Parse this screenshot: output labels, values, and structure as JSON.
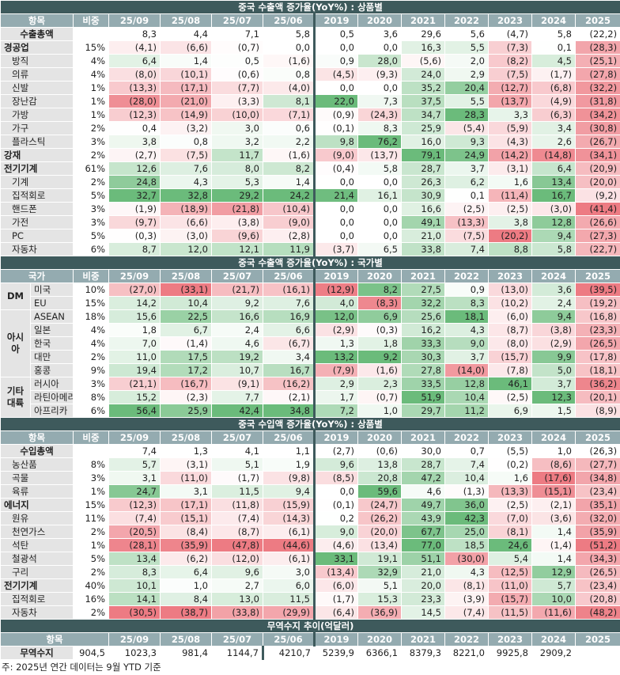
{
  "sections": [
    {
      "title": "중국 수출액 증가율(YoY%) : 상품별",
      "heatmap": true,
      "header": [
        "항목",
        "비중",
        "25/09",
        "25/08",
        "25/07",
        "25/06",
        "2019",
        "2020",
        "2021",
        "2022",
        "2023",
        "2024",
        "2025"
      ],
      "rows": [
        {
          "label": "수출총액",
          "total": true,
          "values": [
            "8,3",
            "4,4",
            "7,1",
            "5,8",
            "0,5",
            "3,6",
            "29,6",
            "5,6",
            "(4,7)",
            "5,8",
            "(22,2)"
          ]
        },
        {
          "label": "경공업",
          "bold": true,
          "weight": "15%",
          "values": [
            "(4,1)",
            "(6,6)",
            "(0,7)",
            "0,0",
            "0,0",
            "0,0",
            "16,3",
            "5,5",
            "(7,3)",
            "0,1",
            "(28,3)"
          ]
        },
        {
          "label": "방직",
          "weight": "4%",
          "values": [
            "6,4",
            "1,4",
            "0,5",
            "(1,6)",
            "0,9",
            "28,0",
            "(5,6)",
            "2,0",
            "(8,2)",
            "4,5",
            "(25,1)"
          ]
        },
        {
          "label": "의류",
          "weight": "4%",
          "values": [
            "(8,0)",
            "(10,1)",
            "(0,6)",
            "0,8",
            "(4,5)",
            "(9,3)",
            "24,0",
            "2,9",
            "(7,5)",
            "(1,7)",
            "(27,8)"
          ]
        },
        {
          "label": "신발",
          "weight": "1%",
          "values": [
            "(13,3)",
            "(17,1)",
            "(7,7)",
            "(4,0)",
            "0,0",
            "0,0",
            "35,2",
            "20,4",
            "(12,7)",
            "(6,8)",
            "(32,2)"
          ]
        },
        {
          "label": "장난감",
          "weight": "1%",
          "values": [
            "(28,0)",
            "(21,0)",
            "(3,3)",
            "8,1",
            "22,0",
            "7,3",
            "37,5",
            "5,5",
            "(13,7)",
            "(4,9)",
            "(31,8)"
          ]
        },
        {
          "label": "가방",
          "weight": "1%",
          "values": [
            "(12,3)",
            "(14,9)",
            "(10,0)",
            "(7,1)",
            "(0,9)",
            "(24,3)",
            "34,7",
            "28,3",
            "3,3",
            "(6,3)",
            "(34,2)"
          ]
        },
        {
          "label": "가구",
          "weight": "2%",
          "values": [
            "0,4",
            "(3,2)",
            "3,0",
            "0,6",
            "(0,1)",
            "8,3",
            "25,9",
            "(5,4)",
            "(5,9)",
            "3,4",
            "(30,8)"
          ]
        },
        {
          "label": "플라스틱",
          "weight": "3%",
          "values": [
            "3,8",
            "0,8",
            "3,2",
            "2,2",
            "9,8",
            "76,2",
            "16,0",
            "9,3",
            "(4,3)",
            "2,6",
            "(26,7)"
          ]
        },
        {
          "label": "강재",
          "bold": true,
          "weight": "2%",
          "values": [
            "(2,7)",
            "(7,5)",
            "11,7",
            "(1,6)",
            "(9,0)",
            "(13,7)",
            "79,1",
            "24,9",
            "(14,2)",
            "(14,8)",
            "(34,1)"
          ]
        },
        {
          "label": "전기기계",
          "bold": true,
          "weight": "61%",
          "values": [
            "12,6",
            "7,6",
            "8,0",
            "8,2",
            "(0,4)",
            "5,8",
            "28,7",
            "3,7",
            "(3,1)",
            "6,4",
            "(20,9)"
          ]
        },
        {
          "label": "기계",
          "weight": "2%",
          "values": [
            "24,8",
            "4,3",
            "5,3",
            "1,4",
            "0,0",
            "0,0",
            "26,3",
            "6,2",
            "1,6",
            "13,4",
            "(20,0)"
          ]
        },
        {
          "label": "집적회로",
          "weight": "5%",
          "values": [
            "32,7",
            "32,8",
            "29,2",
            "24,2",
            "21,4",
            "16,1",
            "30,9",
            "0,1",
            "(11,4)",
            "16,7",
            "(9,2)"
          ]
        },
        {
          "label": "핸드폰",
          "weight": "3%",
          "values": [
            "(1,9)",
            "(18,9)",
            "(21,8)",
            "(10,4)",
            "0,0",
            "0,0",
            "16,6",
            "(2,5)",
            "(2,5)",
            "(3,0)",
            "(41,4)"
          ]
        },
        {
          "label": "가전",
          "weight": "3%",
          "values": [
            "(9,7)",
            "(6,6)",
            "(3,8)",
            "(9,0)",
            "0,0",
            "0,0",
            "49,1",
            "(13,3)",
            "3,8",
            "12,8",
            "(26,6)"
          ]
        },
        {
          "label": "PC",
          "weight": "5%",
          "values": [
            "(0,3)",
            "(3,0)",
            "(9,6)",
            "(2,8)",
            "0,0",
            "0,0",
            "21,0",
            "(7,5)",
            "(20,2)",
            "9,4",
            "(27,3)"
          ]
        },
        {
          "label": "자동차",
          "weight": "6%",
          "values": [
            "8,7",
            "12,0",
            "12,1",
            "11,9",
            "(3,7)",
            "6,5",
            "33,8",
            "7,4",
            "8,8",
            "5,8",
            "(22,7)"
          ]
        }
      ]
    },
    {
      "title": "중국 수출액 증가율(YoY%) : 국가별",
      "heatmap": true,
      "header": [
        "국가",
        "비중",
        "25/09",
        "25/08",
        "25/07",
        "25/06",
        "2019",
        "2020",
        "2021",
        "2022",
        "2023",
        "2024",
        "2025"
      ],
      "groups": [
        {
          "label": "DM",
          "rows": [
            {
              "label": "미국",
              "weight": "10%",
              "values": [
                "(27,0)",
                "(33,1)",
                "(21,7)",
                "(16,1)",
                "(12,9)",
                "8,2",
                "27,5",
                "0,9",
                "(13,0)",
                "3,6",
                "(39,5)"
              ]
            },
            {
              "label": "EU",
              "weight": "15%",
              "values": [
                "14,2",
                "10,4",
                "9,2",
                "7,6",
                "4,0",
                "(8,3)",
                "32,2",
                "8,3",
                "(10,2)",
                "2,4",
                "(19,2)"
              ]
            }
          ]
        },
        {
          "label": "아시아",
          "rows": [
            {
              "label": "ASEAN",
              "weight": "18%",
              "values": [
                "15,6",
                "22,5",
                "16,6",
                "16,9",
                "12,0",
                "6,9",
                "25,6",
                "18,1",
                "(6,0)",
                "9,4",
                "(16,8)"
              ]
            },
            {
              "label": "일본",
              "weight": "4%",
              "values": [
                "1,8",
                "6,7",
                "2,4",
                "6,6",
                "(2,9)",
                "(0,3)",
                "16,2",
                "4,3",
                "(8,7)",
                "(3,8)",
                "(23,3)"
              ]
            },
            {
              "label": "한국",
              "weight": "4%",
              "values": [
                "7,0",
                "(1,4)",
                "4,6",
                "(6,7)",
                "1,3",
                "1,8",
                "33,3",
                "9,0",
                "(8,0)",
                "(2,9)",
                "(26,5)"
              ]
            },
            {
              "label": "대만",
              "weight": "2%",
              "values": [
                "11,0",
                "17,5",
                "19,2",
                "3,4",
                "13,2",
                "9,2",
                "30,3",
                "3,7",
                "(15,7)",
                "9,9",
                "(17,8)"
              ]
            },
            {
              "label": "홍콩",
              "weight": "9%",
              "values": [
                "19,4",
                "17,2",
                "10,7",
                "16,7",
                "(7,9)",
                "(1,6)",
                "27,8",
                "(14,0)",
                "(7,8)",
                "5,0",
                "(18,1)"
              ]
            }
          ]
        },
        {
          "label": "기타 대륙",
          "rows": [
            {
              "label": "러시아",
              "weight": "3%",
              "values": [
                "(21,1)",
                "(16,7)",
                "(9,1)",
                "(16,2)",
                "2,9",
                "2,3",
                "33,5",
                "12,8",
                "46,1",
                "3,7",
                "(36,2)"
              ]
            },
            {
              "label": "라틴아메리카",
              "weight": "8%",
              "values": [
                "15,2",
                "(2,3)",
                "7,7",
                "(2,1)",
                "1,7",
                "(0,7)",
                "51,9",
                "10,4",
                "(2,5)",
                "12,3",
                "(20,1)"
              ]
            },
            {
              "label": "아프리카",
              "weight": "6%",
              "values": [
                "56,4",
                "25,9",
                "42,4",
                "34,8",
                "7,2",
                "1,0",
                "29,7",
                "11,2",
                "6,9",
                "1,5",
                "(8,9)"
              ]
            }
          ]
        }
      ]
    },
    {
      "title": "중국 수입액 증가율(YoY%) : 상품별",
      "heatmap": true,
      "header": [
        "항목",
        "비중",
        "25/09",
        "25/08",
        "25/07",
        "25/06",
        "2019",
        "2020",
        "2021",
        "2022",
        "2023",
        "2024",
        "2025"
      ],
      "rows": [
        {
          "label": "수입총액",
          "total": true,
          "values": [
            "7,4",
            "1,3",
            "4,1",
            "1,1",
            "(2,7)",
            "(0,6)",
            "30,0",
            "0,7",
            "(5,5)",
            "1,0",
            "(26,3)"
          ]
        },
        {
          "label": "농산품",
          "weight": "8%",
          "values": [
            "5,7",
            "(3,1)",
            "5,1",
            "1,9",
            "9,6",
            "13,8",
            "28,7",
            "7,4",
            "(0,2)",
            "(8,6)",
            "(27,7)"
          ]
        },
        {
          "label": "곡물",
          "weight": "3%",
          "values": [
            "3,1",
            "(11,0)",
            "(1,7)",
            "(9,8)",
            "(8,5)",
            "20,8",
            "47,2",
            "10,4",
            "1,6",
            "(17,6)",
            "(34,8)"
          ]
        },
        {
          "label": "육류",
          "weight": "1%",
          "values": [
            "24,7",
            "3,1",
            "11,5",
            "9,4",
            "0,0",
            "59,6",
            "4,6",
            "(1,3)",
            "(13,3)",
            "(15,1)",
            "(23,4)"
          ]
        },
        {
          "label": "에너지",
          "bold": true,
          "weight": "15%",
          "values": [
            "(12,3)",
            "(17,1)",
            "(11,8)",
            "(15,9)",
            "(0,1)",
            "(24,7)",
            "49,7",
            "36,0",
            "(2,5)",
            "(2,1)",
            "(35,1)"
          ]
        },
        {
          "label": "원유",
          "weight": "11%",
          "values": [
            "(7,4)",
            "(15,1)",
            "(7,4)",
            "(14,3)",
            "0,2",
            "(26,2)",
            "43,9",
            "42,3",
            "(7,0)",
            "(3,6)",
            "(32,0)"
          ]
        },
        {
          "label": "천연가스",
          "weight": "2%",
          "values": [
            "(20,5)",
            "(8,4)",
            "(8,7)",
            "(6,1)",
            "9,0",
            "(20,0)",
            "67,7",
            "25,0",
            "(8,1)",
            "1,4",
            "(35,9)"
          ]
        },
        {
          "label": "석탄",
          "weight": "1%",
          "values": [
            "(28,1)",
            "(35,9)",
            "(47,8)",
            "(44,6)",
            "(4,6)",
            "(13,4)",
            "77,0",
            "18,5",
            "24,6",
            "(1,4)",
            "(51,2)"
          ]
        },
        {
          "label": "철광석",
          "weight": "5%",
          "values": [
            "13,4",
            "(6,2)",
            "(12,0)",
            "(6,1)",
            "33,1",
            "19,1",
            "51,1",
            "(30,0)",
            "5,4",
            "1,4",
            "(34,3)"
          ]
        },
        {
          "label": "구리",
          "weight": "2%",
          "values": [
            "8,3",
            "6,4",
            "9,6",
            "3,0",
            "(13,4)",
            "32,9",
            "21,0",
            "4,3",
            "(12,5)",
            "12,9",
            "(26,5)"
          ]
        },
        {
          "label": "전기기계",
          "bold": true,
          "weight": "40%",
          "values": [
            "10,1",
            "1,0",
            "2,7",
            "6,0",
            "(6,0)",
            "5,1",
            "20,0",
            "(8,1)",
            "(11,0)",
            "5,7",
            "(23,4)"
          ]
        },
        {
          "label": "집적회로",
          "weight": "16%",
          "values": [
            "14,1",
            "8,4",
            "13,0",
            "11,5",
            "(1,7)",
            "15,3",
            "23,3",
            "(3,9)",
            "(15,7)",
            "10,0",
            "(20,8)"
          ]
        },
        {
          "label": "자동차",
          "weight": "2%",
          "values": [
            "(30,5)",
            "(38,7)",
            "(33,8)",
            "(29,9)",
            "(6,4)",
            "(36,9)",
            "14,5",
            "(7,4)",
            "(11,5)",
            "(11,6)",
            "(48,2)"
          ]
        }
      ]
    },
    {
      "title": "무역수지 추이(억달러)",
      "heatmap": false,
      "header": [
        "항목",
        "25/09",
        "25/08",
        "25/07",
        "25/06",
        "2019",
        "2020",
        "2021",
        "2022",
        "2023",
        "2024",
        "2025"
      ],
      "rows": [
        {
          "label": "무역수지",
          "total": true,
          "values": [
            "904,5",
            "1023,3",
            "981,4",
            "1144,7",
            "4210,7",
            "5239,9",
            "6366,1",
            "8379,3",
            "8221,0",
            "9925,8",
            "2909,2"
          ]
        }
      ]
    }
  ],
  "footnote": "주: 2025년 연간 데이터는 9월 YTD 기준"
}
